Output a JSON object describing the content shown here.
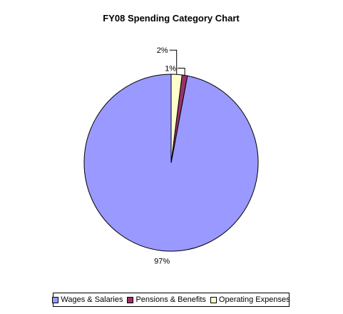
{
  "chart_data": {
    "type": "pie",
    "title": "FY08 Spending Category Chart",
    "categories": [
      "Wages & Salaries",
      "Pensions & Benefits",
      "Operating Expenses"
    ],
    "values": [
      97,
      1,
      2
    ],
    "value_labels": [
      "97%",
      "1%",
      "2%"
    ],
    "colors": [
      "#9999FF",
      "#993366",
      "#FFFFCC"
    ],
    "legend_position": "bottom"
  }
}
